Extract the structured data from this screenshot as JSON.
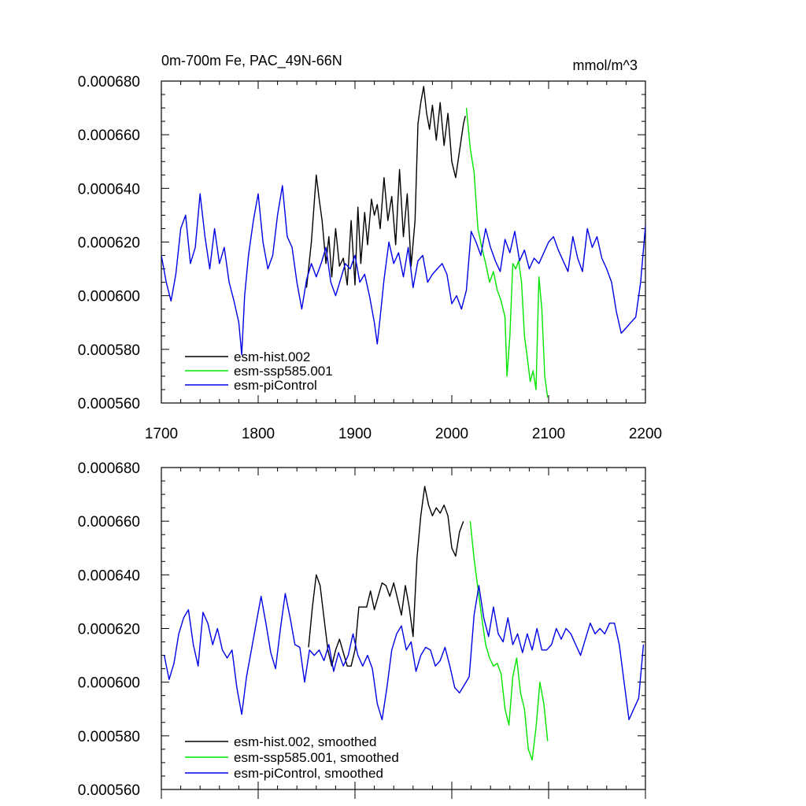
{
  "chart_data": [
    {
      "type": "line",
      "title": "0m-700m Fe, PAC_49N-66N",
      "units": "mmol/m^3",
      "xlim": [
        1700,
        2200
      ],
      "ylim": [
        0.00056,
        0.00068
      ],
      "x_ticks": [
        "1700",
        "1800",
        "1900",
        "2000",
        "2100",
        "2200"
      ],
      "y_ticks": [
        "0.000560",
        "0.000580",
        "0.000600",
        "0.000620",
        "0.000640",
        "0.000660",
        "0.000680"
      ],
      "legend_position": "bottom-left",
      "series": [
        {
          "name": "esm-hist.002",
          "color": "#000000",
          "x": [
            1850,
            1855,
            1860,
            1863,
            1866,
            1870,
            1873,
            1876,
            1880,
            1884,
            1888,
            1892,
            1896,
            1900,
            1903,
            1906,
            1910,
            1913,
            1917,
            1920,
            1923,
            1926,
            1930,
            1934,
            1938,
            1942,
            1946,
            1950,
            1954,
            1958,
            1962,
            1965,
            1968,
            1971,
            1974,
            1977,
            1980,
            1984,
            1988,
            1992,
            1996,
            2000,
            2004,
            2008,
            2012,
            2014
          ],
          "y": [
            0.000603,
            0.00062,
            0.000645,
            0.000636,
            0.000628,
            0.000612,
            0.000622,
            0.000607,
            0.000625,
            0.000611,
            0.000614,
            0.000604,
            0.000628,
            0.000604,
            0.000633,
            0.000612,
            0.000631,
            0.000619,
            0.000636,
            0.00063,
            0.000634,
            0.000625,
            0.000644,
            0.000628,
            0.000637,
            0.000619,
            0.000647,
            0.000622,
            0.000638,
            0.000611,
            0.000628,
            0.000664,
            0.000672,
            0.000678,
            0.000668,
            0.000662,
            0.000671,
            0.000658,
            0.000672,
            0.000656,
            0.000668,
            0.00065,
            0.000644,
            0.000654,
            0.000664,
            0.000667
          ]
        },
        {
          "name": "esm-ssp585.001",
          "color": "#00e600",
          "x": [
            2015,
            2019,
            2023,
            2027,
            2031,
            2035,
            2039,
            2043,
            2047,
            2051,
            2055,
            2057,
            2060,
            2063,
            2066,
            2069,
            2072,
            2075,
            2078,
            2081,
            2084,
            2087,
            2090,
            2093,
            2096,
            2099
          ],
          "y": [
            0.00067,
            0.000655,
            0.000646,
            0.000625,
            0.000618,
            0.000612,
            0.000605,
            0.000609,
            0.000602,
            0.000598,
            0.000592,
            0.00057,
            0.000585,
            0.000612,
            0.00061,
            0.000613,
            0.000605,
            0.000585,
            0.000577,
            0.000568,
            0.000572,
            0.000565,
            0.000607,
            0.000595,
            0.00057,
            0.000562
          ]
        },
        {
          "name": "esm-piControl",
          "color": "#0000e6",
          "x": [
            1700,
            1705,
            1710,
            1715,
            1720,
            1725,
            1730,
            1735,
            1740,
            1745,
            1750,
            1755,
            1760,
            1765,
            1770,
            1775,
            1780,
            1783,
            1786,
            1790,
            1795,
            1800,
            1805,
            1810,
            1815,
            1820,
            1825,
            1830,
            1835,
            1840,
            1845,
            1850,
            1855,
            1860,
            1865,
            1870,
            1875,
            1880,
            1885,
            1890,
            1895,
            1900,
            1905,
            1910,
            1915,
            1920,
            1923,
            1926,
            1930,
            1935,
            1940,
            1945,
            1950,
            1955,
            1960,
            1965,
            1970,
            1975,
            1980,
            1985,
            1990,
            1995,
            2000,
            2005,
            2010,
            2015,
            2020,
            2025,
            2030,
            2035,
            2040,
            2045,
            2050,
            2055,
            2060,
            2065,
            2070,
            2075,
            2080,
            2085,
            2090,
            2095,
            2100,
            2105,
            2110,
            2115,
            2120,
            2125,
            2130,
            2135,
            2140,
            2145,
            2150,
            2155,
            2160,
            2165,
            2170,
            2175,
            2180,
            2185,
            2190,
            2195,
            2200
          ],
          "y": [
            0.000615,
            0.000605,
            0.000598,
            0.000608,
            0.000625,
            0.00063,
            0.000612,
            0.000618,
            0.000638,
            0.000622,
            0.00061,
            0.000625,
            0.000612,
            0.000618,
            0.000605,
            0.000598,
            0.00059,
            0.000578,
            0.0006,
            0.000615,
            0.000628,
            0.000638,
            0.00062,
            0.00061,
            0.000615,
            0.00063,
            0.000641,
            0.000622,
            0.000618,
            0.000605,
            0.000595,
            0.000606,
            0.000612,
            0.000607,
            0.000612,
            0.000618,
            0.000605,
            0.0006,
            0.000606,
            0.000612,
            0.00061,
            0.000615,
            0.000605,
            0.000608,
            0.0006,
            0.00059,
            0.000582,
            0.000592,
            0.000606,
            0.00062,
            0.000612,
            0.000616,
            0.000607,
            0.000618,
            0.000603,
            0.000613,
            0.000615,
            0.000605,
            0.000608,
            0.00061,
            0.000612,
            0.000608,
            0.000597,
            0.0006,
            0.000595,
            0.000602,
            0.000624,
            0.00062,
            0.000615,
            0.000625,
            0.000618,
            0.000613,
            0.000609,
            0.000621,
            0.000616,
            0.000624,
            0.000613,
            0.000617,
            0.00061,
            0.000614,
            0.000612,
            0.000616,
            0.00062,
            0.000622,
            0.000617,
            0.000613,
            0.000609,
            0.000622,
            0.000614,
            0.000609,
            0.000625,
            0.000618,
            0.000622,
            0.000614,
            0.00061,
            0.000605,
            0.000594,
            0.000586,
            0.000588,
            0.00059,
            0.000592,
            0.000605,
            0.000626
          ]
        }
      ]
    },
    {
      "type": "line",
      "title": "",
      "units": "",
      "xlim": [
        1700,
        2200
      ],
      "ylim": [
        0.00056,
        0.00068
      ],
      "x_ticks": [],
      "y_ticks": [
        "0.000560",
        "0.000580",
        "0.000600",
        "0.000620",
        "0.000640",
        "0.000660",
        "0.000680"
      ],
      "legend_position": "bottom-left",
      "series": [
        {
          "name": "esm-hist.002, smoothed",
          "color": "#000000",
          "x": [
            1852,
            1856,
            1860,
            1864,
            1868,
            1872,
            1876,
            1880,
            1884,
            1888,
            1892,
            1896,
            1900,
            1904,
            1908,
            1912,
            1916,
            1920,
            1924,
            1928,
            1932,
            1936,
            1940,
            1944,
            1948,
            1952,
            1956,
            1960,
            1964,
            1968,
            1972,
            1976,
            1980,
            1984,
            1988,
            1992,
            1996,
            2000,
            2004,
            2008,
            2012
          ],
          "y": [
            0.000613,
            0.000628,
            0.00064,
            0.000636,
            0.000624,
            0.000612,
            0.000606,
            0.000612,
            0.000616,
            0.000611,
            0.000606,
            0.000606,
            0.000612,
            0.000628,
            0.000628,
            0.000628,
            0.000634,
            0.000627,
            0.000632,
            0.000637,
            0.000636,
            0.000632,
            0.000637,
            0.000631,
            0.000625,
            0.000636,
            0.000628,
            0.000617,
            0.000646,
            0.000662,
            0.000673,
            0.000666,
            0.000662,
            0.000665,
            0.000663,
            0.000666,
            0.000662,
            0.00065,
            0.000647,
            0.000656,
            0.00066
          ]
        },
        {
          "name": "esm-ssp585.001, smoothed",
          "color": "#00e600",
          "x": [
            2019,
            2023,
            2027,
            2031,
            2035,
            2039,
            2043,
            2047,
            2051,
            2055,
            2059,
            2063,
            2067,
            2071,
            2075,
            2079,
            2083,
            2087,
            2091,
            2095,
            2099
          ],
          "y": [
            0.00066,
            0.000646,
            0.000635,
            0.000624,
            0.000614,
            0.000609,
            0.000606,
            0.000607,
            0.000603,
            0.00059,
            0.000584,
            0.000602,
            0.000609,
            0.000596,
            0.00059,
            0.000575,
            0.000571,
            0.000583,
            0.0006,
            0.000592,
            0.000578
          ]
        },
        {
          "name": "esm-piControl, smoothed",
          "color": "#0000e6",
          "x": [
            1703,
            1708,
            1713,
            1718,
            1723,
            1728,
            1733,
            1738,
            1743,
            1748,
            1753,
            1758,
            1763,
            1768,
            1773,
            1778,
            1783,
            1788,
            1793,
            1798,
            1803,
            1808,
            1813,
            1818,
            1823,
            1828,
            1833,
            1838,
            1843,
            1848,
            1853,
            1858,
            1863,
            1868,
            1873,
            1878,
            1883,
            1888,
            1893,
            1898,
            1903,
            1908,
            1913,
            1918,
            1923,
            1928,
            1933,
            1938,
            1943,
            1948,
            1953,
            1958,
            1963,
            1968,
            1973,
            1978,
            1983,
            1988,
            1993,
            1998,
            2003,
            2008,
            2013,
            2018,
            2023,
            2028,
            2033,
            2038,
            2043,
            2048,
            2053,
            2058,
            2063,
            2068,
            2073,
            2078,
            2083,
            2088,
            2093,
            2098,
            2103,
            2108,
            2113,
            2118,
            2123,
            2128,
            2133,
            2138,
            2143,
            2148,
            2153,
            2158,
            2163,
            2168,
            2173,
            2178,
            2183,
            2188,
            2193,
            2198
          ],
          "y": [
            0.00061,
            0.000601,
            0.000607,
            0.000618,
            0.000624,
            0.000627,
            0.000614,
            0.000606,
            0.000626,
            0.000622,
            0.000614,
            0.00062,
            0.000612,
            0.000609,
            0.000612,
            0.000598,
            0.000588,
            0.000602,
            0.000612,
            0.000622,
            0.000632,
            0.000622,
            0.000611,
            0.000605,
            0.00062,
            0.000633,
            0.000624,
            0.000614,
            0.000613,
            0.0006,
            0.000612,
            0.00061,
            0.000612,
            0.000608,
            0.000614,
            0.000604,
            0.000611,
            0.000606,
            0.00061,
            0.000618,
            0.00061,
            0.000606,
            0.00061,
            0.000605,
            0.000592,
            0.000586,
            0.000598,
            0.000612,
            0.000618,
            0.000621,
            0.000612,
            0.000615,
            0.000604,
            0.00061,
            0.000613,
            0.000612,
            0.000606,
            0.000608,
            0.000613,
            0.000606,
            0.000598,
            0.000596,
            0.000599,
            0.000602,
            0.000625,
            0.000636,
            0.000624,
            0.000617,
            0.000628,
            0.000618,
            0.000615,
            0.000624,
            0.000614,
            0.000618,
            0.000611,
            0.000618,
            0.000612,
            0.00062,
            0.000612,
            0.000612,
            0.000614,
            0.00062,
            0.000616,
            0.00062,
            0.000618,
            0.000614,
            0.00061,
            0.000616,
            0.000622,
            0.000618,
            0.00062,
            0.000618,
            0.000622,
            0.000622,
            0.000614,
            0.0006,
            0.000586,
            0.00059,
            0.000594,
            0.000614
          ]
        }
      ]
    }
  ]
}
